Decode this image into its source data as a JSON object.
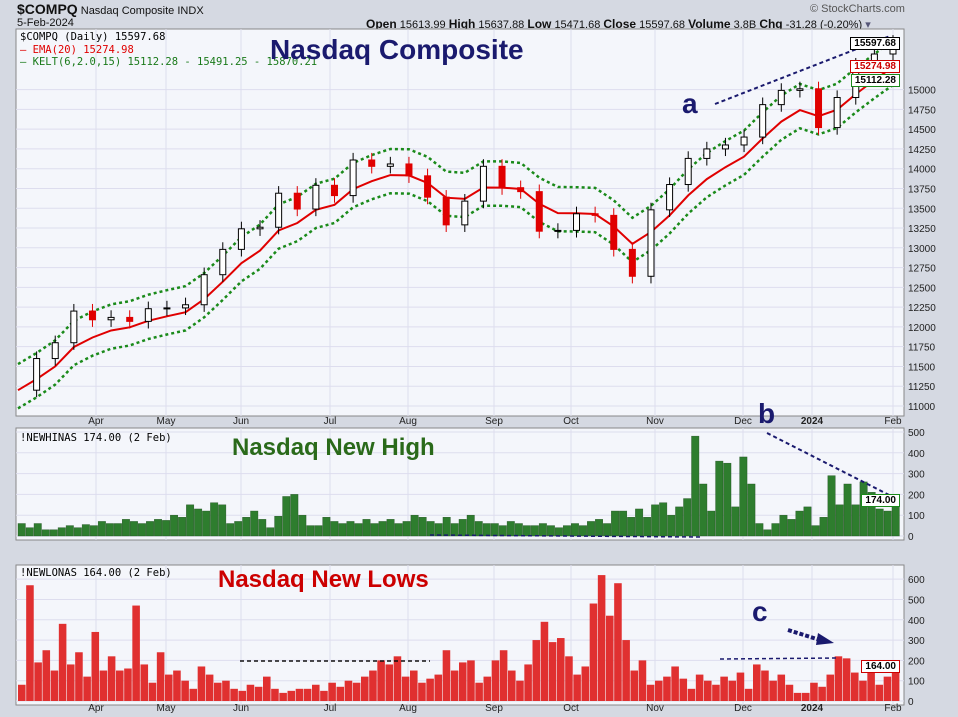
{
  "header": {
    "symbol": "$COMPQ",
    "name": "Nasdaq Composite",
    "exchange": "INDX",
    "date": "5-Feb-2024",
    "watermark": "© StockCharts.com",
    "open_label": "Open",
    "open": "15613.99",
    "high_label": "High",
    "high": "15637.88",
    "low_label": "Low",
    "low": "15471.68",
    "close_label": "Close",
    "close": "15597.68",
    "volume_label": "Volume",
    "volume": "3.8B",
    "chg_label": "Chg",
    "chg": "-31.28 (-0.20%)"
  },
  "legend": {
    "main": "$COMPQ (Daily) 15597.68",
    "ema": "EMA(20) 15274.98",
    "kelt": "KELT(6,2.0,15) 15112.28 - 15491.25 - 15870.21",
    "highs": "!NEWHINAS 174.00 (2 Feb)",
    "lows": "!NEWLONAS 164.00 (2 Feb)"
  },
  "titles": {
    "main": "Nasdaq Composite",
    "highs": "Nasdaq New High",
    "lows": "Nasdaq New Lows"
  },
  "annotations": {
    "a": "a",
    "b": "b",
    "c": "c"
  },
  "tags": {
    "last": "15597.68",
    "kelt_mid": "15491.25",
    "ema": "15274.98",
    "kelt_low": "15112.28",
    "highs": "174.00",
    "lows": "164.00"
  },
  "colors": {
    "up": "#000000",
    "down": "#e00000",
    "ema": "#e00000",
    "kelt": "#1a8a1a",
    "highs": "#2e7d2e",
    "lows": "#e03030",
    "annot": "#1a1a6e"
  },
  "chart_data": [
    {
      "type": "line",
      "title": "Nasdaq Composite",
      "months": [
        "Apr",
        "May",
        "Jun",
        "Jul",
        "Aug",
        "Sep",
        "Oct",
        "Nov",
        "Dec",
        "2024",
        "Feb"
      ],
      "yticks": [
        11000,
        11250,
        11500,
        11750,
        12000,
        12250,
        12500,
        12750,
        13000,
        13250,
        13500,
        13750,
        14000,
        14250,
        14500,
        14750,
        15000
      ],
      "ylim": [
        10900,
        15700
      ],
      "weekly_close": [
        11200,
        11600,
        11800,
        12200,
        12090,
        12120,
        12070,
        12230,
        12240,
        12280,
        12660,
        12980,
        13240,
        13260,
        13690,
        13490,
        13790,
        13660,
        14110,
        14030,
        14060,
        13910,
        13640,
        13290,
        13590,
        14030,
        13760,
        13710,
        13210,
        13220,
        13430,
        13410,
        12980,
        12640,
        13480,
        13800,
        14130,
        14250,
        14300,
        14400,
        14810,
        14990,
        15010,
        14520,
        14900,
        15310,
        15450,
        15598
      ]
    },
    {
      "type": "bar",
      "title": "Nasdaq New High",
      "yticks": [
        0,
        100,
        200,
        300,
        400,
        500
      ],
      "ylim": [
        0,
        500
      ],
      "values": [
        60,
        40,
        60,
        30,
        30,
        40,
        50,
        40,
        55,
        50,
        70,
        60,
        60,
        80,
        70,
        60,
        70,
        80,
        75,
        100,
        90,
        150,
        130,
        120,
        160,
        150,
        60,
        70,
        90,
        120,
        80,
        40,
        95,
        190,
        200,
        100,
        50,
        50,
        90,
        70,
        60,
        70,
        60,
        80,
        60,
        70,
        80,
        60,
        70,
        100,
        90,
        70,
        60,
        90,
        60,
        80,
        100,
        70,
        60,
        60,
        50,
        70,
        60,
        50,
        50,
        60,
        50,
        40,
        50,
        60,
        50,
        70,
        80,
        60,
        120,
        120,
        90,
        130,
        90,
        150,
        160,
        100,
        140,
        180,
        480,
        250,
        120,
        360,
        350,
        140,
        380,
        250,
        60,
        30,
        60,
        100,
        80,
        120,
        140,
        50,
        90,
        290,
        150,
        250,
        150,
        260,
        210,
        130,
        120,
        174
      ]
    },
    {
      "type": "bar",
      "title": "Nasdaq New Lows",
      "yticks": [
        0,
        100,
        200,
        300,
        400,
        500,
        600
      ],
      "ylim": [
        0,
        650
      ],
      "values": [
        80,
        570,
        190,
        250,
        150,
        380,
        180,
        240,
        120,
        340,
        150,
        220,
        150,
        160,
        470,
        180,
        90,
        240,
        130,
        150,
        100,
        60,
        170,
        130,
        90,
        100,
        60,
        50,
        80,
        70,
        120,
        60,
        40,
        50,
        60,
        60,
        80,
        50,
        90,
        70,
        100,
        90,
        120,
        150,
        200,
        180,
        220,
        120,
        150,
        90,
        110,
        130,
        250,
        150,
        190,
        200,
        90,
        120,
        200,
        250,
        150,
        100,
        180,
        300,
        390,
        290,
        310,
        220,
        130,
        170,
        480,
        620,
        420,
        580,
        300,
        150,
        200,
        80,
        100,
        120,
        170,
        110,
        60,
        130,
        100,
        80,
        120,
        100,
        140,
        60,
        180,
        150,
        100,
        130,
        80,
        40,
        40,
        90,
        70,
        130,
        220,
        210,
        140,
        100,
        150,
        80,
        120,
        164
      ]
    }
  ]
}
